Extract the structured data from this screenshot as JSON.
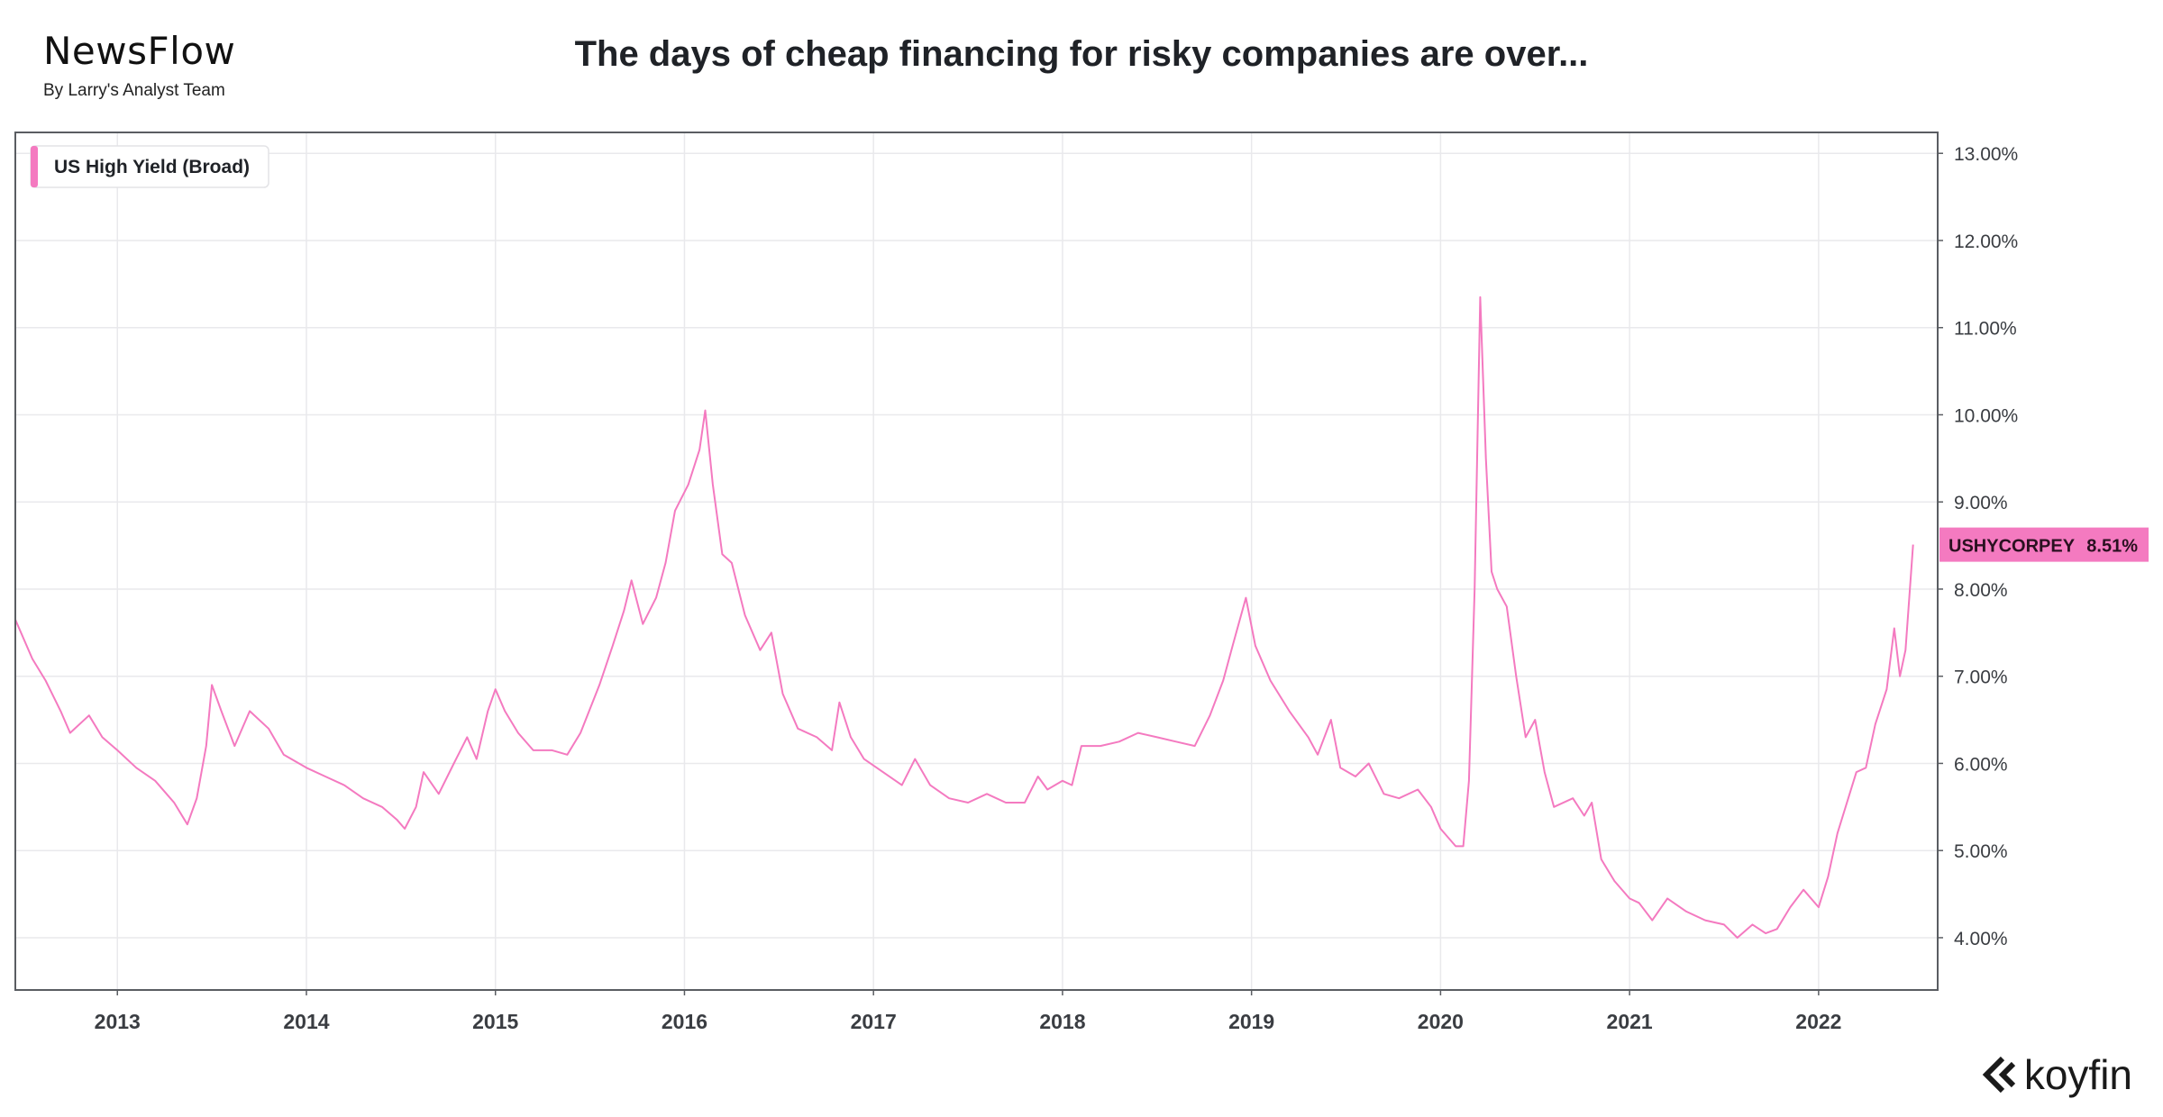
{
  "brand": {
    "name": "NewsFlow",
    "tagline": "By Larry's Analyst Team"
  },
  "title": "The days of cheap financing for risky companies are over...",
  "logo": {
    "name": "koyfin",
    "icon": "koyfin-chevron-icon"
  },
  "colors": {
    "series": "#f47ac0",
    "grid": "#e9e9ec",
    "axis_text": "#3a3d42",
    "frame": "#5a5d62"
  },
  "chart_data": {
    "type": "line",
    "title": "The days of cheap financing for risky companies are over...",
    "xlabel": "",
    "ylabel": "",
    "x_ticks": [
      "2013",
      "2014",
      "2015",
      "2016",
      "2017",
      "2018",
      "2019",
      "2020",
      "2021",
      "2022"
    ],
    "y_ticks": [
      "4.00%",
      "5.00%",
      "6.00%",
      "7.00%",
      "8.00%",
      "9.00%",
      "10.00%",
      "11.00%",
      "12.00%",
      "13.00%"
    ],
    "xlim": [
      2012.46,
      2022.63
    ],
    "ylim": [
      3.4,
      13.24
    ],
    "grid": true,
    "legend": {
      "placement": "top-left",
      "label": "US High Yield (Broad)"
    },
    "last_value_label": {
      "ticker": "USHYCORPEY",
      "value": "8.51%"
    },
    "series": [
      {
        "name": "US High Yield (Broad)",
        "color": "#f47ac0",
        "points": [
          [
            2012.46,
            7.65
          ],
          [
            2012.55,
            7.2
          ],
          [
            2012.62,
            6.95
          ],
          [
            2012.7,
            6.6
          ],
          [
            2012.75,
            6.35
          ],
          [
            2012.85,
            6.55
          ],
          [
            2012.92,
            6.3
          ],
          [
            2013.0,
            6.15
          ],
          [
            2013.1,
            5.95
          ],
          [
            2013.2,
            5.8
          ],
          [
            2013.3,
            5.55
          ],
          [
            2013.37,
            5.3
          ],
          [
            2013.42,
            5.6
          ],
          [
            2013.47,
            6.2
          ],
          [
            2013.5,
            6.9
          ],
          [
            2013.55,
            6.6
          ],
          [
            2013.62,
            6.2
          ],
          [
            2013.7,
            6.6
          ],
          [
            2013.8,
            6.4
          ],
          [
            2013.88,
            6.1
          ],
          [
            2014.0,
            5.95
          ],
          [
            2014.1,
            5.85
          ],
          [
            2014.2,
            5.75
          ],
          [
            2014.3,
            5.6
          ],
          [
            2014.4,
            5.5
          ],
          [
            2014.48,
            5.35
          ],
          [
            2014.52,
            5.25
          ],
          [
            2014.58,
            5.5
          ],
          [
            2014.62,
            5.9
          ],
          [
            2014.7,
            5.65
          ],
          [
            2014.78,
            6.0
          ],
          [
            2014.85,
            6.3
          ],
          [
            2014.9,
            6.05
          ],
          [
            2014.96,
            6.6
          ],
          [
            2015.0,
            6.85
          ],
          [
            2015.05,
            6.6
          ],
          [
            2015.12,
            6.35
          ],
          [
            2015.2,
            6.15
          ],
          [
            2015.3,
            6.15
          ],
          [
            2015.38,
            6.1
          ],
          [
            2015.45,
            6.35
          ],
          [
            2015.55,
            6.9
          ],
          [
            2015.62,
            7.35
          ],
          [
            2015.68,
            7.75
          ],
          [
            2015.72,
            8.1
          ],
          [
            2015.78,
            7.6
          ],
          [
            2015.85,
            7.9
          ],
          [
            2015.9,
            8.3
          ],
          [
            2015.95,
            8.9
          ],
          [
            2016.02,
            9.2
          ],
          [
            2016.08,
            9.6
          ],
          [
            2016.11,
            10.05
          ],
          [
            2016.15,
            9.2
          ],
          [
            2016.2,
            8.4
          ],
          [
            2016.25,
            8.3
          ],
          [
            2016.32,
            7.7
          ],
          [
            2016.4,
            7.3
          ],
          [
            2016.46,
            7.5
          ],
          [
            2016.52,
            6.8
          ],
          [
            2016.6,
            6.4
          ],
          [
            2016.7,
            6.3
          ],
          [
            2016.78,
            6.15
          ],
          [
            2016.82,
            6.7
          ],
          [
            2016.88,
            6.3
          ],
          [
            2016.95,
            6.05
          ],
          [
            2017.05,
            5.9
          ],
          [
            2017.15,
            5.75
          ],
          [
            2017.22,
            6.05
          ],
          [
            2017.3,
            5.75
          ],
          [
            2017.4,
            5.6
          ],
          [
            2017.5,
            5.55
          ],
          [
            2017.6,
            5.65
          ],
          [
            2017.7,
            5.55
          ],
          [
            2017.8,
            5.55
          ],
          [
            2017.87,
            5.85
          ],
          [
            2017.92,
            5.7
          ],
          [
            2018.0,
            5.8
          ],
          [
            2018.05,
            5.75
          ],
          [
            2018.1,
            6.2
          ],
          [
            2018.2,
            6.2
          ],
          [
            2018.3,
            6.25
          ],
          [
            2018.4,
            6.35
          ],
          [
            2018.5,
            6.3
          ],
          [
            2018.6,
            6.25
          ],
          [
            2018.7,
            6.2
          ],
          [
            2018.78,
            6.55
          ],
          [
            2018.85,
            6.95
          ],
          [
            2018.9,
            7.35
          ],
          [
            2018.97,
            7.9
          ],
          [
            2019.02,
            7.35
          ],
          [
            2019.1,
            6.95
          ],
          [
            2019.2,
            6.6
          ],
          [
            2019.3,
            6.3
          ],
          [
            2019.35,
            6.1
          ],
          [
            2019.42,
            6.5
          ],
          [
            2019.47,
            5.95
          ],
          [
            2019.55,
            5.85
          ],
          [
            2019.62,
            6.0
          ],
          [
            2019.7,
            5.65
          ],
          [
            2019.78,
            5.6
          ],
          [
            2019.88,
            5.7
          ],
          [
            2019.95,
            5.5
          ],
          [
            2020.0,
            5.25
          ],
          [
            2020.08,
            5.05
          ],
          [
            2020.12,
            5.05
          ],
          [
            2020.15,
            5.8
          ],
          [
            2020.18,
            8.0
          ],
          [
            2020.21,
            11.35
          ],
          [
            2020.24,
            9.5
          ],
          [
            2020.27,
            8.2
          ],
          [
            2020.3,
            8.0
          ],
          [
            2020.35,
            7.8
          ],
          [
            2020.4,
            7.0
          ],
          [
            2020.45,
            6.3
          ],
          [
            2020.5,
            6.5
          ],
          [
            2020.55,
            5.9
          ],
          [
            2020.6,
            5.5
          ],
          [
            2020.7,
            5.6
          ],
          [
            2020.76,
            5.4
          ],
          [
            2020.8,
            5.55
          ],
          [
            2020.85,
            4.9
          ],
          [
            2020.92,
            4.65
          ],
          [
            2021.0,
            4.45
          ],
          [
            2021.05,
            4.4
          ],
          [
            2021.12,
            4.2
          ],
          [
            2021.2,
            4.45
          ],
          [
            2021.3,
            4.3
          ],
          [
            2021.4,
            4.2
          ],
          [
            2021.5,
            4.15
          ],
          [
            2021.57,
            4.0
          ],
          [
            2021.65,
            4.15
          ],
          [
            2021.72,
            4.05
          ],
          [
            2021.78,
            4.1
          ],
          [
            2021.85,
            4.35
          ],
          [
            2021.92,
            4.55
          ],
          [
            2022.0,
            4.35
          ],
          [
            2022.05,
            4.7
          ],
          [
            2022.1,
            5.2
          ],
          [
            2022.15,
            5.55
          ],
          [
            2022.2,
            5.9
          ],
          [
            2022.25,
            5.95
          ],
          [
            2022.3,
            6.45
          ],
          [
            2022.36,
            6.85
          ],
          [
            2022.4,
            7.55
          ],
          [
            2022.43,
            7.0
          ],
          [
            2022.46,
            7.3
          ],
          [
            2022.5,
            8.51
          ]
        ]
      }
    ]
  }
}
